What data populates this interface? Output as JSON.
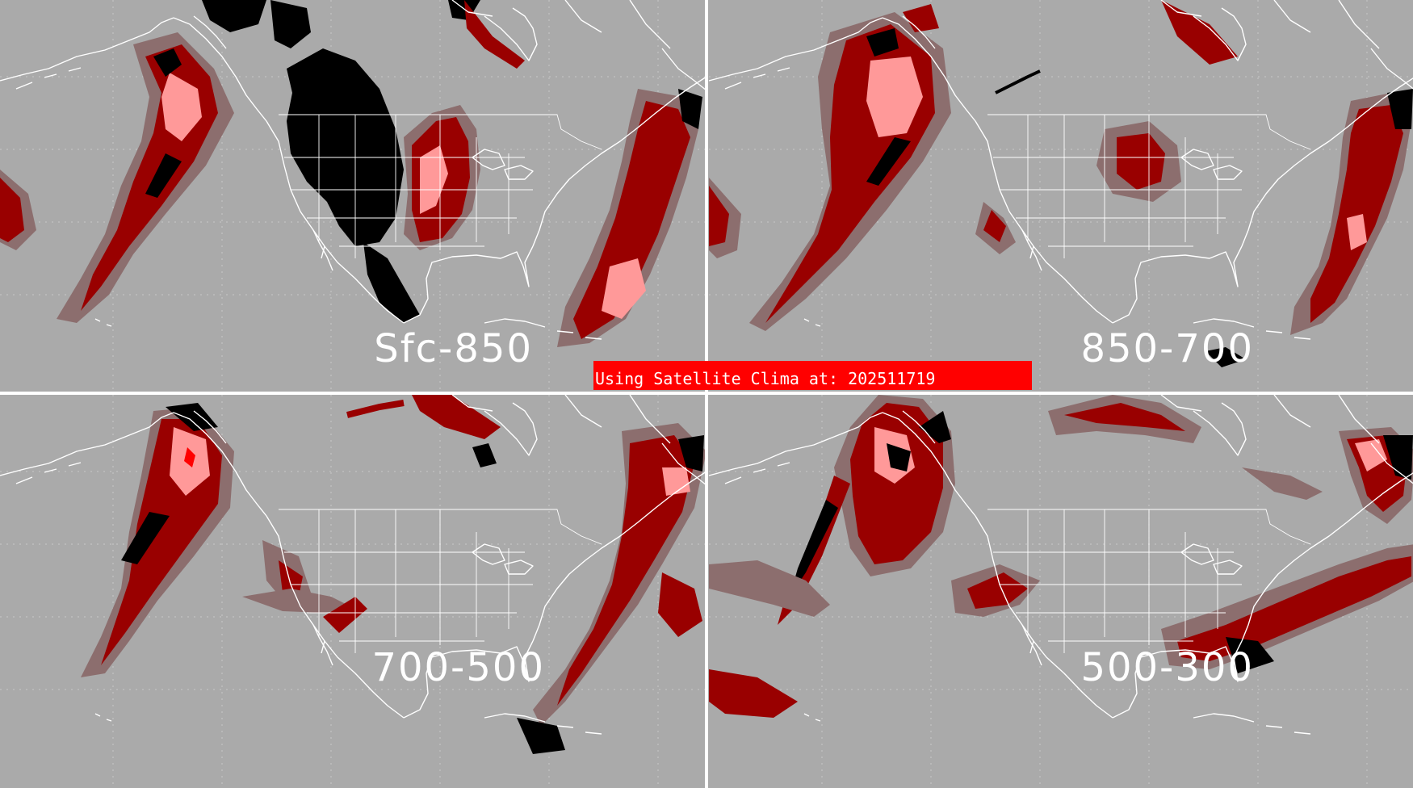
{
  "banner": {
    "text": "Using Satellite Clima at: 202511719",
    "color": "#ff0000"
  },
  "panels": [
    {
      "id": "sfc-850",
      "label": "Sfc-850"
    },
    {
      "id": "850-700",
      "label": "850-700"
    },
    {
      "id": "700-500",
      "label": "700-500"
    },
    {
      "id": "500-300",
      "label": "500-300"
    }
  ],
  "colors": {
    "background": "#aaaaaa",
    "low": "#8c6e6e",
    "medium": "#990000",
    "high": "#ff9999",
    "very_high": "#ff0000",
    "saturated": "#000000",
    "coastline": "#ffffff",
    "divider": "#ffffff"
  }
}
